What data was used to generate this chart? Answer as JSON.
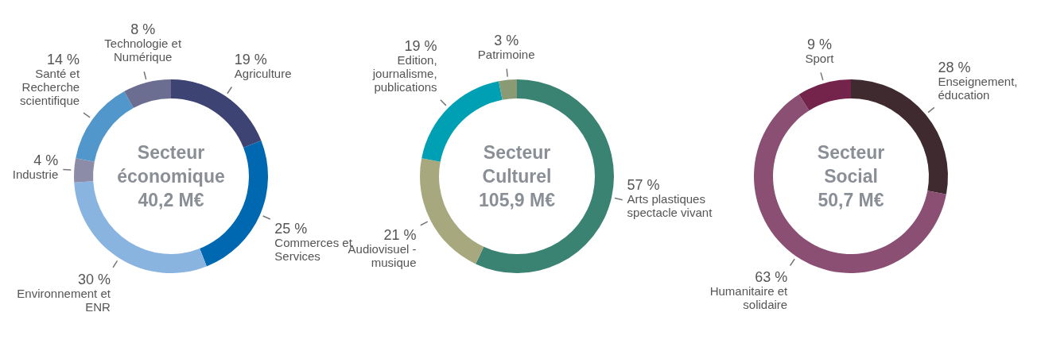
{
  "chart_data": [
    {
      "type": "donut",
      "title": "Secteur économique",
      "subtitle": "40,2 M€",
      "categories": [
        "Agriculture",
        "Commerces et Services",
        "Environnement et ENR",
        "Industrie",
        "Santé et Recherche scientifique",
        "Technologie et Numérique"
      ],
      "values": [
        19,
        25,
        30,
        4,
        14,
        8
      ],
      "value_labels": [
        "19 %",
        "25 %",
        "30 %",
        "4 %",
        "14 %",
        "8 %"
      ],
      "colors": [
        "#3d4373",
        "#0068b0",
        "#8ab4e0",
        "#8c8ca8",
        "#5297cc",
        "#6b6e91"
      ]
    },
    {
      "type": "donut",
      "title": "Secteur Culturel",
      "subtitle": "105,9 M€",
      "categories": [
        "Arts plastiques spectacle vivant",
        "Audiovisuel - musique",
        "Edition, journalisme, publications",
        "Patrimoine"
      ],
      "values": [
        57,
        21,
        19,
        3
      ],
      "value_labels": [
        "57 %",
        "21 %",
        "19 %",
        "3 %"
      ],
      "colors": [
        "#3a8272",
        "#a8a87e",
        "#00a0b4",
        "#8a9a74"
      ]
    },
    {
      "type": "donut",
      "title": "Secteur Social",
      "subtitle": "50,7 M€",
      "categories": [
        "Enseignement, éducation",
        "Humanitaire et solidaire",
        "Sport"
      ],
      "values": [
        28,
        63,
        9
      ],
      "value_labels": [
        "28 %",
        "63 %",
        "9 %"
      ],
      "colors": [
        "#3f2a30",
        "#8a4f73",
        "#74244a"
      ]
    }
  ]
}
